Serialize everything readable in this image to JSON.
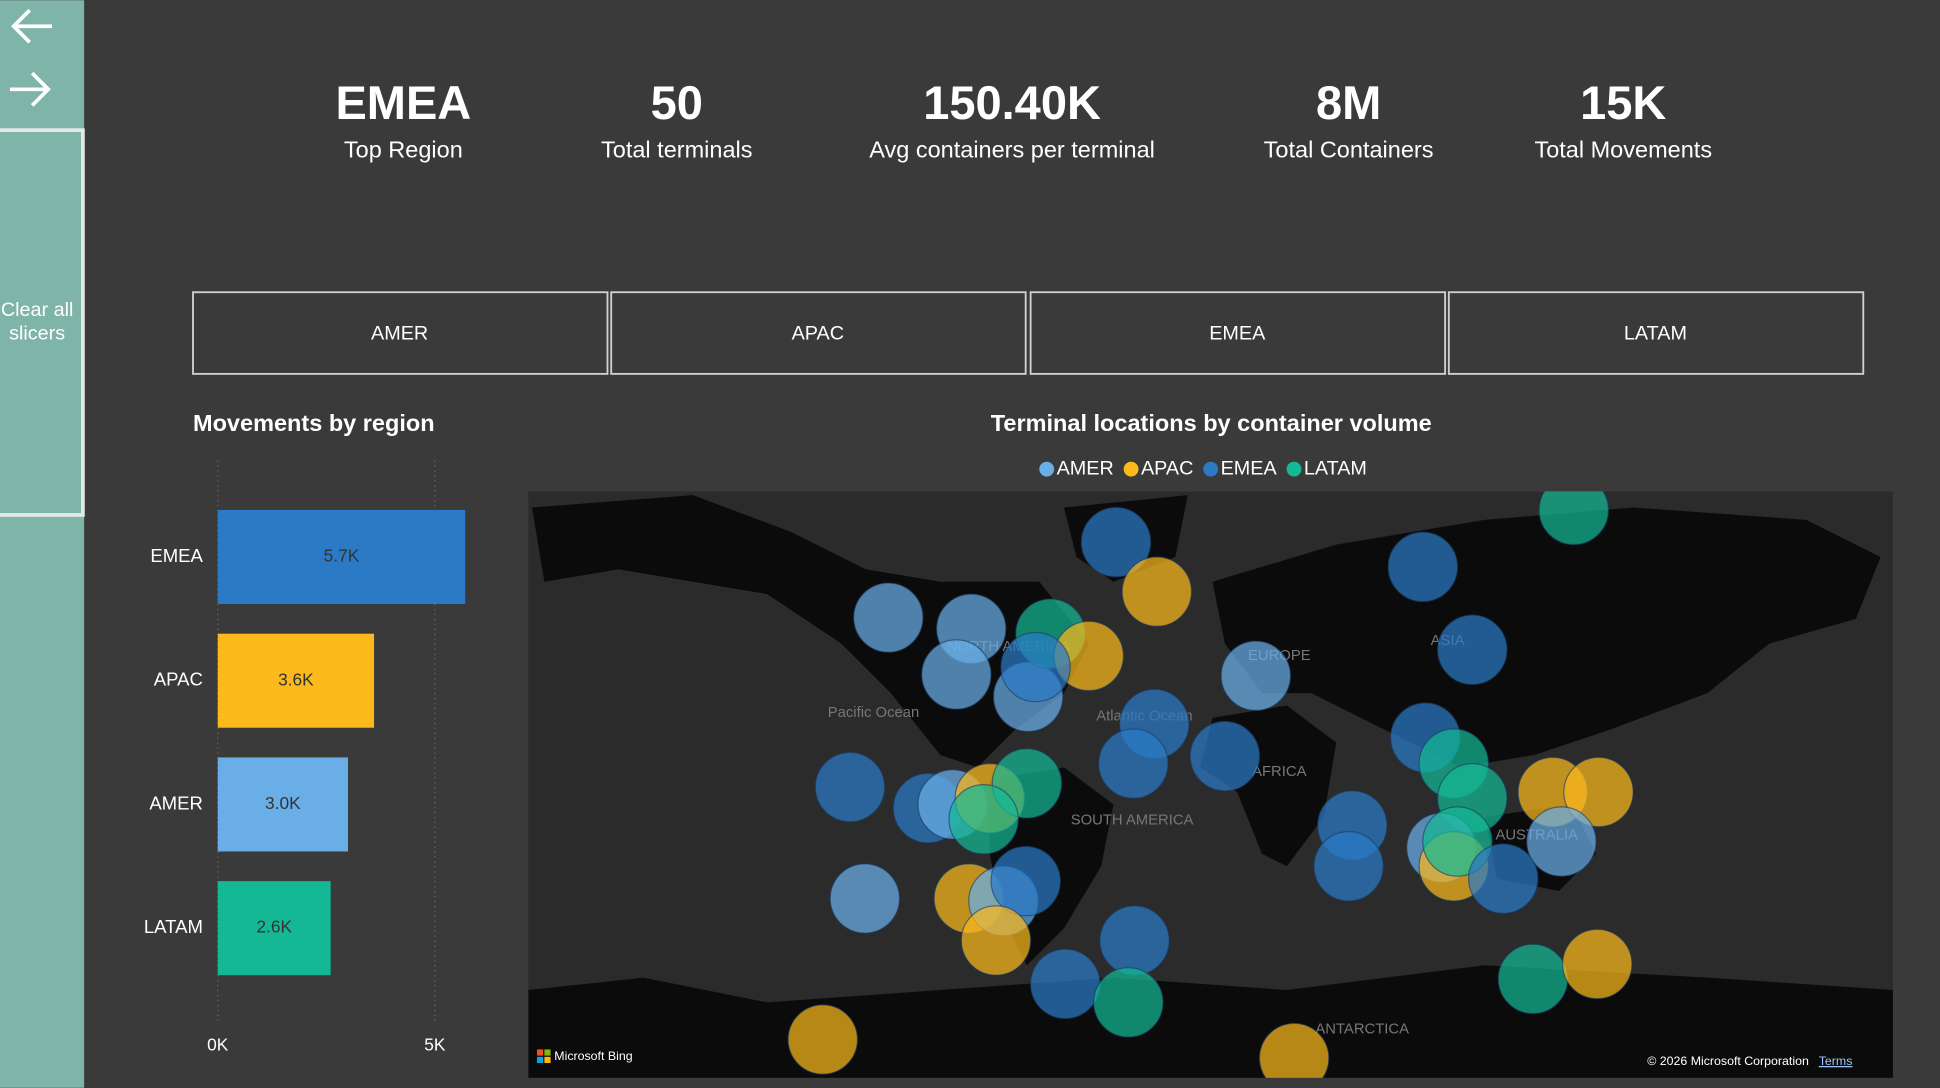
{
  "sidebar": {
    "clear_button": [
      "Clear all",
      "slicers"
    ]
  },
  "kpis": [
    {
      "value": "EMEA",
      "label": "Top Region"
    },
    {
      "value": "50",
      "label": "Total terminals"
    },
    {
      "value": "150.40K",
      "label": "Avg containers per terminal"
    },
    {
      "value": "8M",
      "label": "Total Containers"
    },
    {
      "value": "15K",
      "label": "Total Movements"
    }
  ],
  "slicers": [
    "AMER",
    "APAC",
    "EMEA",
    "LATAM"
  ],
  "bar_chart": {
    "type": "bar",
    "title": "Movements by region",
    "categories": [
      "EMEA",
      "APAC",
      "AMER",
      "LATAM"
    ],
    "values": [
      5700,
      3600,
      3000,
      2600
    ],
    "value_labels": [
      "5.7K",
      "3.6K",
      "3.0K",
      "2.6K"
    ],
    "colors": [
      "#2a7ac6",
      "#fbb91c",
      "#6aaee8",
      "#14b894"
    ],
    "xlim": [
      0,
      5700
    ],
    "xticks": [
      {
        "value": 0,
        "label": "0K"
      },
      {
        "value": 5000,
        "label": "5K"
      }
    ],
    "grid": true
  },
  "map": {
    "title": "Terminal locations by container volume",
    "legend": [
      {
        "name": "AMER",
        "color": "#6aaee8"
      },
      {
        "name": "APAC",
        "color": "#fbb91c"
      },
      {
        "name": "EMEA",
        "color": "#2a7ac6"
      },
      {
        "name": "LATAM",
        "color": "#14b894"
      }
    ],
    "labels": [
      "Pacific Ocean",
      "Atlantic Ocean",
      "NORTH AMERICA",
      "SOUTH AMERICA",
      "EUROPE",
      "AFRICA",
      "ASIA",
      "AUSTRALIA",
      "ANTARCTICA"
    ],
    "brand": "Microsoft Bing",
    "copyright": "© 2026 Microsoft Corporation",
    "terms": "Terms"
  }
}
